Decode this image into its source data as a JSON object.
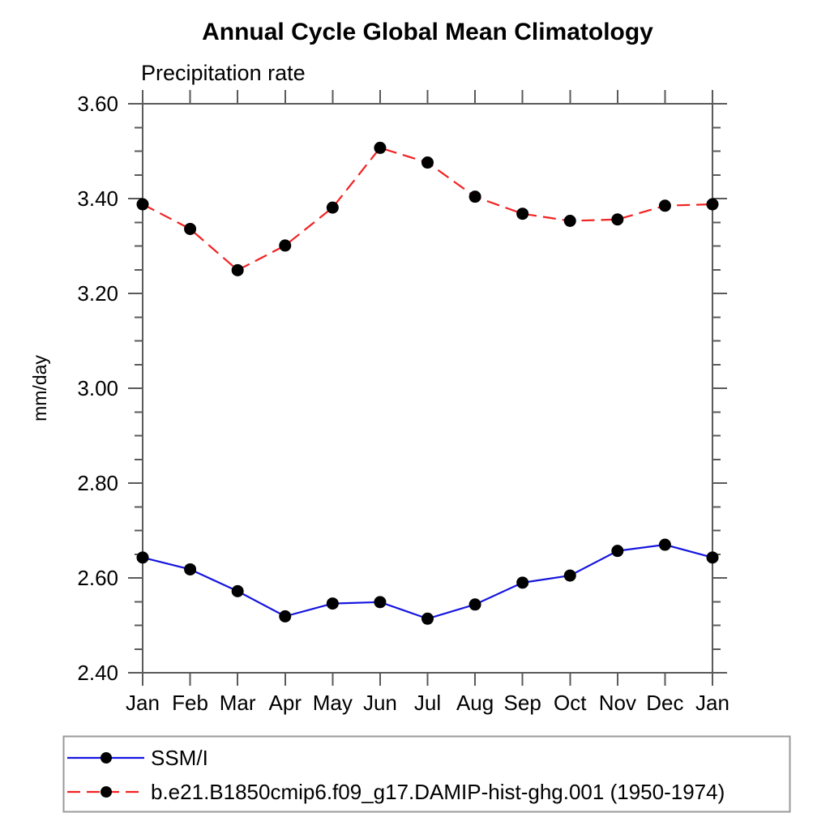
{
  "chart_data": {
    "type": "line",
    "title": "Annual Cycle Global Mean Climatology",
    "subtitle": "Precipitation rate",
    "ylabel": "mm/day",
    "xlabel": "",
    "categories": [
      "Jan",
      "Feb",
      "Mar",
      "Apr",
      "May",
      "Jun",
      "Jul",
      "Aug",
      "Sep",
      "Oct",
      "Nov",
      "Dec",
      "Jan"
    ],
    "ylim": [
      2.4,
      3.6
    ],
    "ytick_major_step": 0.2,
    "ytick_minor_step": 0.05,
    "ytick_labels": [
      "2.40",
      "2.60",
      "2.80",
      "3.00",
      "3.20",
      "3.40",
      "3.60"
    ],
    "grid": false,
    "legend_position": "bottom",
    "series": [
      {
        "name": "SSM/I",
        "color": "#1515e0",
        "line_style": "solid",
        "marker": "filled-circle",
        "marker_color": "#000000",
        "values": [
          2.643,
          2.618,
          2.572,
          2.519,
          2.546,
          2.549,
          2.514,
          2.544,
          2.59,
          2.605,
          2.657,
          2.67,
          2.643
        ]
      },
      {
        "name": "b.e21.B1850cmip6.f09_g17.DAMIP-hist-ghg.001 (1950-1974)",
        "color": "#f22222",
        "line_style": "dashed",
        "marker": "filled-circle",
        "marker_color": "#000000",
        "values": [
          3.388,
          3.336,
          3.249,
          3.301,
          3.381,
          3.507,
          3.476,
          3.404,
          3.368,
          3.353,
          3.356,
          3.385,
          3.388
        ]
      }
    ]
  }
}
